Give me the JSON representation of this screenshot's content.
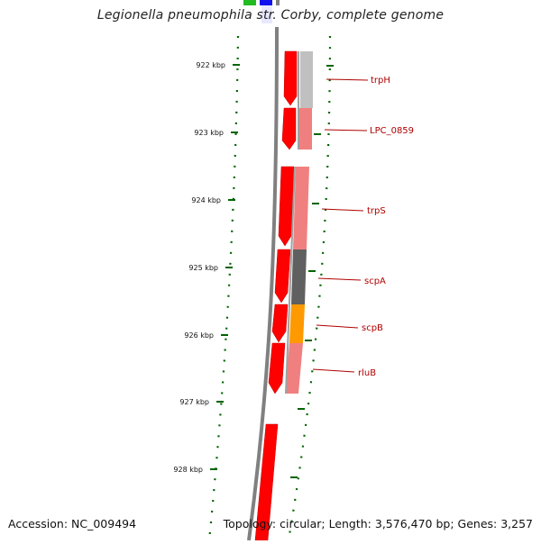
{
  "title": "Legionella pneumophila str. Corby, complete genome",
  "footer": {
    "accession": "Accession: NC_009494",
    "summary": "Topology: circular; Length: 3,576,470 bp; Genes: 3,257"
  },
  "ticks": [
    "922 kbp",
    "923 kbp",
    "924 kbp",
    "925 kbp",
    "926 kbp",
    "927 kbp",
    "928 kbp"
  ],
  "genes": [
    {
      "label": "trpH"
    },
    {
      "label": "LPC_0859"
    },
    {
      "label": "trpS"
    },
    {
      "label": "scpA"
    },
    {
      "label": "scpB"
    },
    {
      "label": "rluB"
    }
  ],
  "colors": {
    "backbone": "#808080",
    "cds": "#ff0000",
    "tick": "#006400",
    "label": "#b00000",
    "track_pink": "#f08080",
    "track_grey_dark": "#606060",
    "track_grey_light": "#c0c0c0",
    "track_orange": "#ff9900",
    "top_green": "#22bb22",
    "top_blue": "#1111ee"
  }
}
